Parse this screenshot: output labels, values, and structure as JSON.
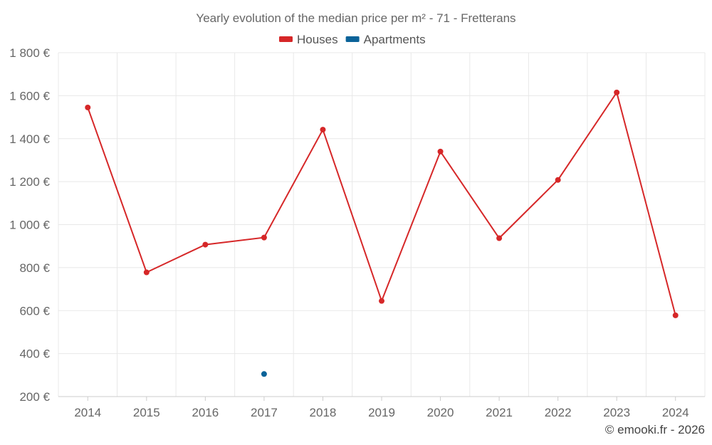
{
  "chart_data": {
    "type": "line",
    "title": "Yearly evolution of the median price per m² - 71 - Fretterans",
    "categories": [
      "2014",
      "2015",
      "2016",
      "2017",
      "2018",
      "2019",
      "2020",
      "2021",
      "2022",
      "2023",
      "2024"
    ],
    "series": [
      {
        "name": "Houses",
        "color": "#d62728",
        "values": [
          1545,
          778,
          907,
          940,
          1442,
          645,
          1340,
          937,
          1208,
          1615,
          578
        ]
      },
      {
        "name": "Apartments",
        "color": "#0b6399",
        "values": [
          null,
          null,
          null,
          305,
          null,
          null,
          null,
          null,
          null,
          null,
          null
        ]
      }
    ],
    "yticks": [
      "200 €",
      "400 €",
      "600 €",
      "800 €",
      "1 000 €",
      "1 200 €",
      "1 400 €",
      "1 600 €",
      "1 800 €"
    ],
    "ylim": [
      200,
      1800
    ],
    "ytick_values": [
      200,
      400,
      600,
      800,
      1000,
      1200,
      1400,
      1600,
      1800
    ],
    "grid": true,
    "legend_position": "top-center"
  },
  "credit": "© emooki.fr - 2026"
}
